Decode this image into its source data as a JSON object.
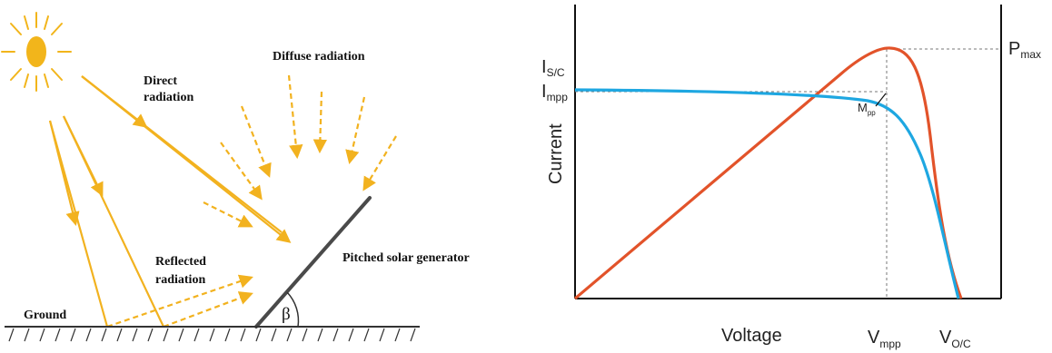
{
  "colors": {
    "sun": "#f2b51b",
    "ray": "#f2b21f",
    "panel": "#4a4a4a",
    "ground": "#333333",
    "current_curve": "#1ea7e1",
    "power_curve": "#e2532a",
    "axis": "#111111",
    "guide": "#777777"
  },
  "left_diagram": {
    "labels": {
      "direct": [
        "Direct",
        "radiation"
      ],
      "diffuse": "Diffuse radiation",
      "reflected": [
        "Reflected",
        "radiation"
      ],
      "panel": "Pitched solar generator",
      "ground": "Ground",
      "angle": "β"
    }
  },
  "right_chart": {
    "y_axis_label": "Current",
    "x_axis_label": "Voltage",
    "isc": {
      "main": "I",
      "sub": "S/C"
    },
    "impp": {
      "main": "I",
      "sub": "mpp"
    },
    "pmax": {
      "main": "P",
      "sub": "max"
    },
    "mpp": {
      "main": "M",
      "sub": "pp"
    },
    "vmpp": {
      "main": "V",
      "sub": "mpp"
    },
    "voc": {
      "main": "V",
      "sub": "O/C"
    }
  }
}
